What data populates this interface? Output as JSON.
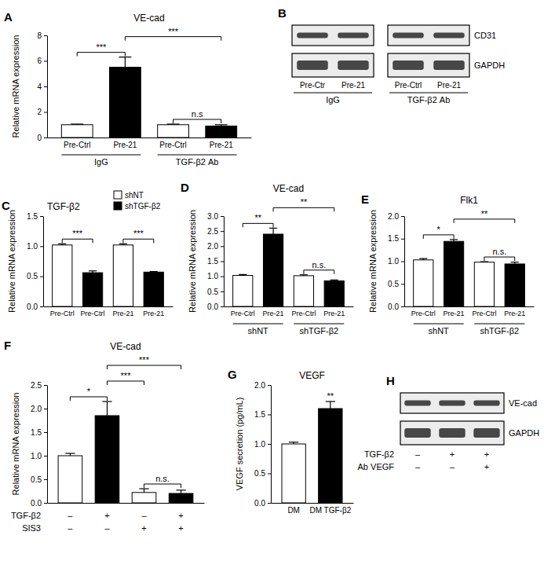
{
  "chart_data": [
    {
      "panel": "A",
      "type": "bar",
      "title": "VE-cad",
      "y_label": "Relative mRNA expression",
      "categories": [
        "Pre-Ctrl",
        "Pre-21",
        "Pre-Ctrl",
        "Pre-21"
      ],
      "values": [
        1.0,
        5.5,
        1.0,
        0.9
      ],
      "errors": [
        0.05,
        0.8,
        0.05,
        0.1
      ],
      "colors": [
        "#ffffff",
        "#000000",
        "#ffffff",
        "#000000"
      ],
      "groups": [
        "IgG",
        "TGF-β2 Ab"
      ],
      "ylim": [
        0,
        8
      ],
      "yticks": [
        0,
        2,
        4,
        6,
        8
      ],
      "significance": [
        {
          "from": 0,
          "to": 1,
          "label": "***"
        },
        {
          "from": 1,
          "to": 3,
          "label": "***"
        },
        {
          "from": 2,
          "to": 3,
          "label": "n.s"
        }
      ]
    },
    {
      "panel": "C",
      "type": "bar",
      "title": "TGF-β2",
      "y_label": "Relative mRNA expression",
      "categories": [
        "Pre-Ctrl",
        "Pre-Ctrl",
        "Pre-21",
        "Pre-21"
      ],
      "values": [
        1.02,
        0.56,
        1.02,
        0.57
      ],
      "errors": [
        0.02,
        0.03,
        0.02,
        0.01
      ],
      "colors": [
        "#ffffff",
        "#000000",
        "#ffffff",
        "#000000"
      ],
      "legend_entries": [
        {
          "label": "shNT",
          "color": "#ffffff"
        },
        {
          "label": "shTGF-β2",
          "color": "#000000"
        }
      ],
      "ylim": [
        0,
        1.5
      ],
      "yticks": [
        {
          "value": 0,
          "label": "0.0"
        },
        0.5,
        {
          "value": 1,
          "label": "1.0"
        },
        1.5
      ],
      "significance": [
        {
          "from": 0,
          "to": 1,
          "label": "***"
        },
        {
          "from": 2,
          "to": 3,
          "label": "***"
        }
      ]
    },
    {
      "panel": "D",
      "type": "bar",
      "title": "VE-cad",
      "y_label": "Relative mRNA expression",
      "categories": [
        "Pre-Ctrl",
        "Pre-21",
        "Pre-Ctrl",
        "Pre-21"
      ],
      "values": [
        1.03,
        2.4,
        1.02,
        0.85
      ],
      "errors": [
        0.03,
        0.2,
        0.03,
        0.03
      ],
      "colors": [
        "#ffffff",
        "#000000",
        "#ffffff",
        "#000000"
      ],
      "groups": [
        "shNT",
        "shTGF-β2"
      ],
      "ylim": [
        0,
        3
      ],
      "yticks": [
        {
          "value": 0,
          "label": "0.0"
        },
        0.5,
        {
          "value": 1,
          "label": "1.0"
        },
        1.5,
        {
          "value": 2,
          "label": "2.0"
        },
        2.5,
        {
          "value": 3,
          "label": "3.0"
        }
      ],
      "significance": [
        {
          "from": 0,
          "to": 1,
          "label": "**"
        },
        {
          "from": 1,
          "to": 3,
          "label": "**"
        },
        {
          "from": 2,
          "to": 3,
          "label": "n.s."
        }
      ]
    },
    {
      "panel": "E",
      "type": "bar",
      "title": "Flk1",
      "y_label": "Relative mRNA expression",
      "categories": [
        "Pre-Ctrl",
        "Pre-21",
        "Pre-Ctrl",
        "Pre-21"
      ],
      "values": [
        1.03,
        1.44,
        0.98,
        0.94
      ],
      "errors": [
        0.03,
        0.04,
        0.01,
        0.04
      ],
      "colors": [
        "#ffffff",
        "#000000",
        "#ffffff",
        "#000000"
      ],
      "groups": [
        "shNT",
        "shTGF-β2"
      ],
      "ylim": [
        0,
        2
      ],
      "yticks": [
        {
          "value": 0,
          "label": "0.0"
        },
        0.5,
        {
          "value": 1,
          "label": "1.0"
        },
        1.5,
        {
          "value": 2,
          "label": "2.0"
        }
      ],
      "significance": [
        {
          "from": 0,
          "to": 1,
          "label": "*"
        },
        {
          "from": 1,
          "to": 3,
          "label": "**"
        },
        {
          "from": 2,
          "to": 3,
          "label": "n.s."
        }
      ]
    },
    {
      "panel": "F",
      "type": "bar",
      "title": "VE-cad",
      "y_label": "Relative mRNA expression",
      "categories": [
        null,
        null,
        null,
        null
      ],
      "values": [
        1.0,
        1.85,
        0.22,
        0.2
      ],
      "errors": [
        0.05,
        0.3,
        0.08,
        0.07
      ],
      "colors": [
        "#ffffff",
        "#000000",
        "#ffffff",
        "#000000"
      ],
      "conditions": [
        {
          "label": "TGF-β2",
          "signs": [
            "–",
            "+",
            "–",
            "+"
          ]
        },
        {
          "label": "SIS3",
          "signs": [
            "–",
            "–",
            "+",
            "+"
          ]
        }
      ],
      "ylim": [
        0,
        2.5
      ],
      "yticks": [
        {
          "value": 0,
          "label": "0.0"
        },
        0.5,
        {
          "value": 1,
          "label": "1.0"
        },
        1.5,
        {
          "value": 2,
          "label": "2.0"
        },
        2.5
      ],
      "significance": [
        {
          "from": 0,
          "to": 1,
          "label": "*"
        },
        {
          "from": 1,
          "to": 2,
          "label": "***"
        },
        {
          "from": 1,
          "to": 3,
          "label": "***"
        },
        {
          "from": 2,
          "to": 3,
          "label": "n.s."
        }
      ]
    },
    {
      "panel": "G",
      "type": "bar",
      "title": "VEGF",
      "y_label": "VEGF secretion (pg/mL)",
      "categories": [
        "DM",
        "DM TGF-β2"
      ],
      "values": [
        1.0,
        1.6
      ],
      "errors": [
        0.03,
        0.12
      ],
      "colors": [
        "#ffffff",
        "#000000"
      ],
      "ylim": [
        0,
        2
      ],
      "yticks": [
        {
          "value": 0,
          "label": "0.0"
        },
        0.5,
        {
          "value": 1,
          "label": "1.0"
        },
        1.5,
        {
          "value": 2,
          "label": "2.0"
        }
      ],
      "significance": [
        {
          "from": 1,
          "to": 1,
          "label": "**"
        }
      ]
    }
  ],
  "blots": [
    {
      "panel": "B",
      "row_labels": [
        "CD31",
        "GAPDH"
      ],
      "lanes": [
        "Pre-Ctr",
        "Pre-21",
        "Pre-Ctrl",
        "Pre-21"
      ],
      "groups": [
        "IgG",
        "TGF-β2 Ab"
      ]
    },
    {
      "panel": "H",
      "row_labels": [
        "VE-cad",
        "GAPDH"
      ],
      "conditions": [
        {
          "label": "TGF-β2",
          "signs": [
            "–",
            "+",
            "+"
          ]
        },
        {
          "label": "Ab VEGF",
          "signs": [
            "–",
            "–",
            "+"
          ]
        }
      ]
    }
  ]
}
